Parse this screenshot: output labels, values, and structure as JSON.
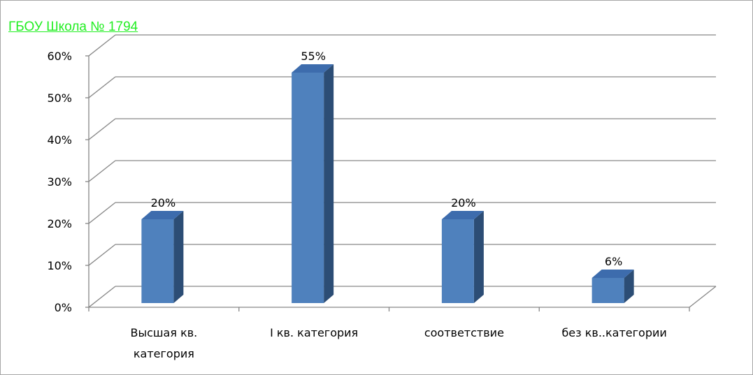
{
  "chart_data": {
    "type": "bar",
    "title": "ГБОУ Школа № 1794",
    "categories": [
      [
        "Высшая кв.",
        "категория"
      ],
      [
        "I кв. категория"
      ],
      [
        "соответствие"
      ],
      [
        "без кв..категории"
      ]
    ],
    "values": [
      20,
      55,
      20,
      6
    ],
    "value_labels": [
      "20%",
      "55%",
      "20%",
      "6%"
    ],
    "y_ticks": [
      "0%",
      "10%",
      "20%",
      "30%",
      "40%",
      "50%",
      "60%"
    ],
    "ylim": [
      0,
      60
    ],
    "grid": true,
    "three_d": true,
    "bar_color": "#4f81bd",
    "bar_side_color": "#2c4d75",
    "bar_top_color": "#3d6cad",
    "title_color": "#22ee22"
  }
}
